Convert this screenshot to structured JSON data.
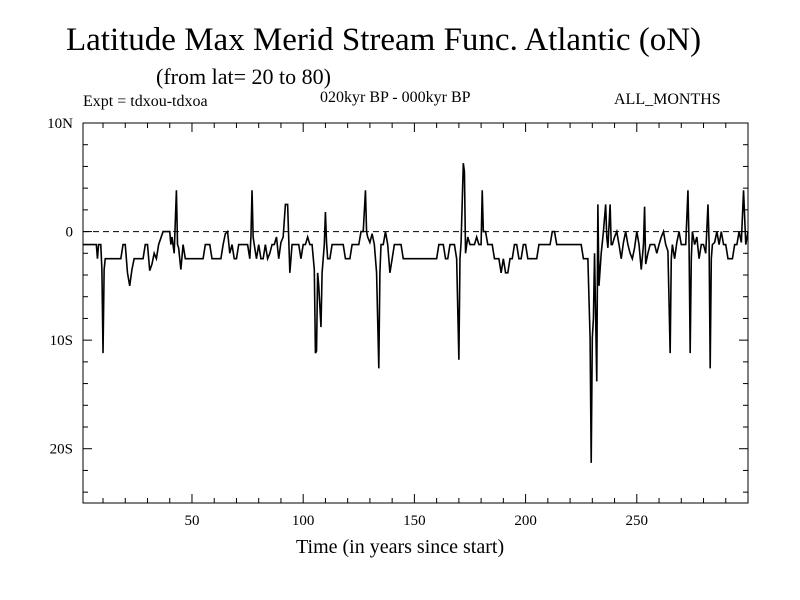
{
  "title": "Latitude Max Merid Stream Func. Atlantic (oN)",
  "subtitle": "(from lat= 20 to 80)",
  "expt": "Expt = tdxou-tdxoa",
  "period": "020kyr BP - 000kyr BP",
  "months": "ALL_MONTHS",
  "chart_data": {
    "type": "line",
    "xlabel": "Time (in years since start)",
    "ylabel": "",
    "xlim": [
      1,
      300
    ],
    "ylim": [
      -25,
      10
    ],
    "x_ticks": [
      50,
      100,
      150,
      200,
      250
    ],
    "y_ticks": [
      {
        "value": 10,
        "label": "10N"
      },
      {
        "value": 0,
        "label": "0"
      },
      {
        "value": -10,
        "label": "10S"
      },
      {
        "value": -20,
        "label": "20S"
      }
    ],
    "reference_line": {
      "value": 0,
      "style": "dashed"
    },
    "grid": false,
    "series": [
      {
        "points": [
          [
            1,
            -1.2
          ],
          [
            7,
            -1.2
          ],
          [
            7.5,
            -2.5
          ],
          [
            8,
            -1.2
          ],
          [
            9,
            -1.2
          ],
          [
            9.5,
            -3.5
          ],
          [
            10,
            -11.2
          ],
          [
            10.5,
            -3.5
          ],
          [
            11,
            -2.5
          ],
          [
            18,
            -2.5
          ],
          [
            19,
            -1.2
          ],
          [
            20,
            -1.2
          ],
          [
            21,
            -3.8
          ],
          [
            22,
            -5
          ],
          [
            23,
            -3.5
          ],
          [
            24,
            -2.5
          ],
          [
            28,
            -2.5
          ],
          [
            29,
            -1.2
          ],
          [
            30,
            -1.2
          ],
          [
            31,
            -3.6
          ],
          [
            32,
            -3
          ],
          [
            33,
            -2
          ],
          [
            34,
            -2.5
          ],
          [
            35,
            -1.2
          ],
          [
            37,
            0
          ],
          [
            40,
            0
          ],
          [
            40.5,
            -1.2
          ],
          [
            41,
            -0.5
          ],
          [
            42,
            -2
          ],
          [
            43,
            3.8
          ],
          [
            43.5,
            -1.2
          ],
          [
            44,
            -1.5
          ],
          [
            45,
            -3.5
          ],
          [
            46,
            -1.2
          ],
          [
            47,
            -2.5
          ],
          [
            55,
            -2.5
          ],
          [
            56,
            -1.2
          ],
          [
            58,
            -1.2
          ],
          [
            59,
            -2.5
          ],
          [
            63,
            -2.5
          ],
          [
            64,
            -1.2
          ],
          [
            65,
            -0.2
          ],
          [
            66,
            0
          ],
          [
            67,
            -2
          ],
          [
            68,
            -1.2
          ],
          [
            69,
            -2.5
          ],
          [
            70,
            -2.5
          ],
          [
            71,
            -1.2
          ],
          [
            75,
            -1.2
          ],
          [
            76,
            -2.5
          ],
          [
            76.5,
            -0.5
          ],
          [
            77,
            3.8
          ],
          [
            77.5,
            -0.5
          ],
          [
            78,
            -1.2
          ],
          [
            79,
            -2.5
          ],
          [
            80,
            -1.2
          ],
          [
            81,
            -2.5
          ],
          [
            82,
            -2.5
          ],
          [
            83,
            -1.2
          ],
          [
            84,
            -2.5
          ],
          [
            85,
            -2
          ],
          [
            86,
            -1.2
          ],
          [
            87,
            -1.2
          ],
          [
            88,
            -0.5
          ],
          [
            89,
            -2.5
          ],
          [
            90,
            -1
          ],
          [
            91,
            -0.5
          ],
          [
            92,
            2.5
          ],
          [
            93,
            2.5
          ],
          [
            94,
            -3.8
          ],
          [
            95,
            -1.2
          ],
          [
            98,
            -1.2
          ],
          [
            99,
            -2.5
          ],
          [
            100,
            -1.2
          ],
          [
            101,
            -1.2
          ],
          [
            102,
            -0.5
          ],
          [
            103,
            -1.2
          ],
          [
            104,
            -1.2
          ],
          [
            105,
            -3.5
          ],
          [
            105.5,
            -11.2
          ],
          [
            106,
            -11
          ],
          [
            106.5,
            -3.8
          ],
          [
            107,
            -5
          ],
          [
            108,
            -8.8
          ],
          [
            108.5,
            -3.8
          ],
          [
            109,
            -2.5
          ],
          [
            109.5,
            -1.2
          ],
          [
            110,
            1.8
          ],
          [
            110.5,
            -1
          ],
          [
            111,
            -2.5
          ],
          [
            112,
            -2.5
          ],
          [
            113,
            -1.2
          ],
          [
            118,
            -1.2
          ],
          [
            119,
            -2.5
          ],
          [
            121,
            -2.5
          ],
          [
            122,
            -1.2
          ],
          [
            125,
            -1.2
          ],
          [
            126,
            0
          ],
          [
            127,
            0
          ],
          [
            128,
            3.8
          ],
          [
            128.5,
            0
          ],
          [
            129,
            -0.5
          ],
          [
            130,
            -1
          ],
          [
            131,
            -0.2
          ],
          [
            132,
            -1.2
          ],
          [
            133,
            -3.8
          ],
          [
            134,
            -12.6
          ],
          [
            134.5,
            -3.8
          ],
          [
            135,
            -1.2
          ],
          [
            136,
            -1.2
          ],
          [
            137,
            0
          ],
          [
            138,
            -1.2
          ],
          [
            139,
            -3.8
          ],
          [
            140,
            -2.5
          ],
          [
            141,
            -1.2
          ],
          [
            144,
            -1.2
          ],
          [
            145,
            -2.5
          ],
          [
            160,
            -2.5
          ],
          [
            161,
            -1.2
          ],
          [
            163,
            -1.2
          ],
          [
            164,
            -2.5
          ],
          [
            165,
            -2.5
          ],
          [
            166,
            -1.2
          ],
          [
            168,
            -1.2
          ],
          [
            169,
            -2.5
          ],
          [
            170,
            -11.8
          ],
          [
            170.5,
            -2.5
          ],
          [
            171,
            -1
          ],
          [
            172,
            6.3
          ],
          [
            172.5,
            5.5
          ],
          [
            173,
            -2
          ],
          [
            174,
            -0.5
          ],
          [
            175,
            -1.2
          ],
          [
            177,
            -1.2
          ],
          [
            178,
            -0.5
          ],
          [
            179,
            -1.2
          ],
          [
            180,
            -1.2
          ],
          [
            180.5,
            3.8
          ],
          [
            181,
            0
          ],
          [
            182,
            0
          ],
          [
            183,
            -1.2
          ],
          [
            185,
            -1.2
          ],
          [
            186,
            -2.5
          ],
          [
            188,
            -2.5
          ],
          [
            189,
            -3.8
          ],
          [
            190,
            -2.5
          ],
          [
            191,
            -3.8
          ],
          [
            192,
            -3.8
          ],
          [
            193,
            -2.5
          ],
          [
            194,
            -2.5
          ],
          [
            195,
            -1.2
          ],
          [
            196,
            -1.2
          ],
          [
            197,
            -2.5
          ],
          [
            198,
            -2.5
          ],
          [
            199,
            -1.2
          ],
          [
            200,
            -1.2
          ],
          [
            201,
            -2.5
          ],
          [
            205,
            -2.5
          ],
          [
            206,
            -1.2
          ],
          [
            211,
            -1.2
          ],
          [
            212,
            0
          ],
          [
            213,
            0
          ],
          [
            214,
            -1.2
          ],
          [
            225,
            -1.2
          ],
          [
            226,
            -2.5
          ],
          [
            228,
            -2.5
          ],
          [
            229,
            -9.8
          ],
          [
            229.5,
            -21.3
          ],
          [
            230,
            -9.8
          ],
          [
            230.5,
            -8
          ],
          [
            231,
            -2
          ],
          [
            232,
            -13.8
          ],
          [
            232.5,
            2.5
          ],
          [
            233,
            -5
          ],
          [
            234,
            -2
          ],
          [
            235,
            0
          ],
          [
            236,
            2.5
          ],
          [
            236.5,
            -0.5
          ],
          [
            237,
            -1.5
          ],
          [
            238,
            2.5
          ],
          [
            238.5,
            -1.2
          ],
          [
            239,
            -1.2
          ],
          [
            240,
            -0.5
          ],
          [
            241,
            0
          ],
          [
            242,
            -1.2
          ],
          [
            243,
            -2.5
          ],
          [
            244,
            -1
          ],
          [
            245,
            0
          ],
          [
            246,
            -1.2
          ],
          [
            247,
            -2
          ],
          [
            248,
            -2.5
          ],
          [
            249,
            -1.5
          ],
          [
            250,
            0
          ],
          [
            251,
            -1.2
          ],
          [
            252,
            -3.5
          ],
          [
            253,
            -1.2
          ],
          [
            253.5,
            2.3
          ],
          [
            254,
            -3
          ],
          [
            255,
            -2
          ],
          [
            256,
            -1.2
          ],
          [
            258,
            -1.2
          ],
          [
            259,
            -2
          ],
          [
            260,
            -1.2
          ],
          [
            261,
            -0.5
          ],
          [
            262,
            0
          ],
          [
            263,
            -1.2
          ],
          [
            264,
            -1.8
          ],
          [
            265,
            -11.2
          ],
          [
            265.5,
            -2.5
          ],
          [
            266,
            -1.2
          ],
          [
            267,
            -2.5
          ],
          [
            268,
            -1
          ],
          [
            269,
            0
          ],
          [
            270,
            -1.2
          ],
          [
            272,
            -1.2
          ],
          [
            273,
            3.8
          ],
          [
            273.5,
            -1.2
          ],
          [
            274,
            -11.2
          ],
          [
            274.5,
            -2.5
          ],
          [
            275,
            0
          ],
          [
            276,
            -1.2
          ],
          [
            277,
            -0.5
          ],
          [
            278,
            -2.5
          ],
          [
            279,
            -1.2
          ],
          [
            280,
            -1.2
          ],
          [
            281,
            -2
          ],
          [
            282,
            2.5
          ],
          [
            282.5,
            -1
          ],
          [
            283,
            -12.6
          ],
          [
            283.5,
            -2.5
          ],
          [
            284,
            -1.2
          ],
          [
            285,
            -1
          ],
          [
            286,
            0
          ],
          [
            287,
            -1.2
          ],
          [
            288,
            0
          ],
          [
            289,
            -1.2
          ],
          [
            290,
            -1.2
          ],
          [
            291,
            -2.5
          ],
          [
            293,
            -2.5
          ],
          [
            294,
            -1.2
          ],
          [
            295,
            -1.2
          ],
          [
            296,
            0
          ],
          [
            297,
            -1
          ],
          [
            298,
            3.8
          ],
          [
            299,
            -1.2
          ],
          [
            300,
            0
          ]
        ]
      }
    ]
  }
}
